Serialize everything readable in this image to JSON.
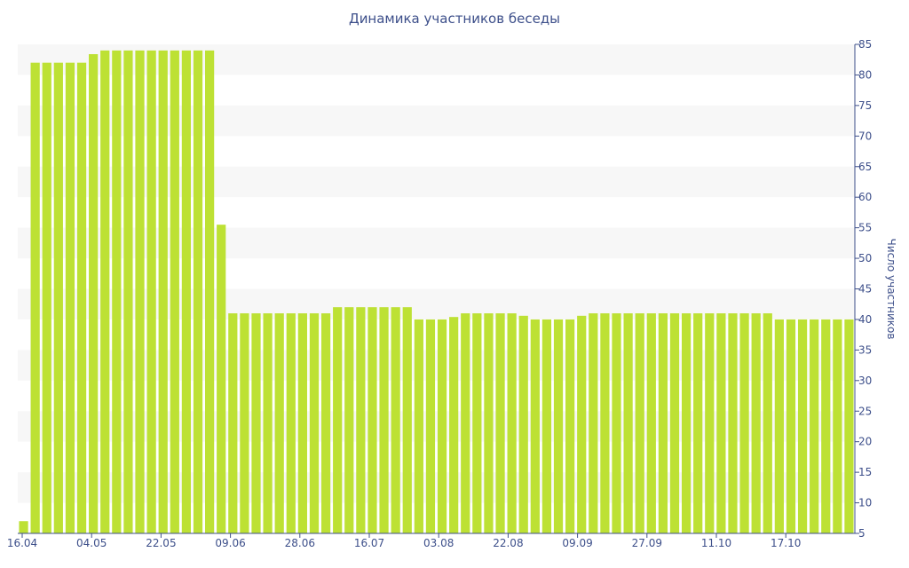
{
  "chart_data": {
    "type": "bar",
    "title": "Динамика участников беседы",
    "xlabel": "",
    "ylabel": "Число участников",
    "ylim": [
      5,
      85
    ],
    "yticks": [
      5,
      10,
      15,
      20,
      25,
      30,
      35,
      40,
      45,
      50,
      55,
      60,
      65,
      70,
      75,
      80,
      85
    ],
    "xtick_labels": [
      "16.04",
      "04.05",
      "22.05",
      "09.06",
      "28.06",
      "16.07",
      "03.08",
      "22.08",
      "09.09",
      "27.09",
      "11.10",
      "17.10"
    ],
    "grid": "alternating horizontal bands",
    "y_axis_position": "right",
    "bar_color": "#bde134",
    "band_color": "#f7f7f7",
    "axis_color": "#3d4f8a",
    "values": [
      7,
      82,
      82,
      82,
      82,
      82,
      83.4,
      84,
      84,
      84,
      84,
      84,
      84,
      84,
      84,
      84,
      84,
      55.5,
      41,
      41,
      41,
      41,
      41,
      41,
      41,
      41,
      41,
      42,
      42,
      42,
      42,
      42,
      42,
      42,
      40,
      40,
      40,
      40.4,
      41,
      41,
      41,
      41,
      41,
      40.6,
      40,
      40,
      40,
      40,
      40.6,
      41,
      41,
      41,
      41,
      41,
      41,
      41,
      41,
      41,
      41,
      41,
      41,
      41,
      41,
      41,
      41,
      40,
      40,
      40,
      40,
      40,
      40,
      40
    ]
  }
}
